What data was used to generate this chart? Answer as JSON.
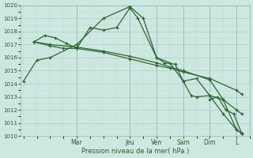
{
  "xlabel": "Pression niveau de la mer( hPa )",
  "bg_color": "#cce8e0",
  "grid_color": "#b0ccc8",
  "line_color": "#2d6632",
  "ylim": [
    1010,
    1020
  ],
  "yticks": [
    1010,
    1011,
    1012,
    1013,
    1014,
    1015,
    1016,
    1017,
    1018,
    1019,
    1020
  ],
  "day_labels": [
    "Mar",
    "Jeu",
    "Ven",
    "Sam",
    "Dim",
    "L"
  ],
  "day_positions": [
    2.0,
    4.0,
    5.0,
    6.0,
    7.0,
    8.0
  ],
  "xlim": [
    -0.1,
    8.5
  ],
  "series": [
    {
      "x": [
        0.0,
        0.5,
        1.0,
        2.0,
        3.0,
        4.0,
        4.5,
        5.0,
        5.5,
        6.0,
        6.3,
        6.5,
        7.0,
        7.5,
        8.0,
        8.2
      ],
      "y": [
        1014.2,
        1015.8,
        1016.0,
        1017.0,
        1019.0,
        1019.9,
        1019.0,
        1016.0,
        1015.6,
        1014.2,
        1013.1,
        1013.0,
        1013.1,
        1011.7,
        1010.5,
        1010.2
      ]
    },
    {
      "x": [
        0.4,
        0.8,
        1.2,
        1.6,
        2.0,
        2.5,
        3.0,
        3.5,
        4.0,
        4.3,
        5.0,
        5.3,
        5.7,
        6.0,
        6.5,
        7.0,
        7.5,
        8.0,
        8.2
      ],
      "y": [
        1017.2,
        1017.7,
        1017.5,
        1017.1,
        1016.7,
        1018.3,
        1018.1,
        1018.3,
        1019.8,
        1019.0,
        1016.0,
        1015.6,
        1015.5,
        1014.2,
        1014.4,
        1013.1,
        1012.8,
        1010.5,
        1010.2
      ]
    },
    {
      "x": [
        0.4,
        1.0,
        1.5,
        2.0,
        3.0,
        4.0,
        5.0,
        5.5,
        6.0,
        7.0,
        8.0,
        8.2
      ],
      "y": [
        1017.2,
        1016.9,
        1016.7,
        1016.7,
        1016.4,
        1015.9,
        1015.4,
        1015.2,
        1014.9,
        1014.4,
        1013.5,
        1013.2
      ]
    },
    {
      "x": [
        0.4,
        1.0,
        2.0,
        3.0,
        4.0,
        5.0,
        6.0,
        7.0,
        7.5,
        8.0,
        8.2
      ],
      "y": [
        1017.2,
        1017.0,
        1016.8,
        1016.5,
        1016.1,
        1015.6,
        1015.0,
        1014.3,
        1012.8,
        1012.0,
        1011.7
      ]
    },
    {
      "x": [
        7.0,
        7.3,
        7.6,
        7.9,
        8.2
      ],
      "y": [
        1012.8,
        1013.0,
        1012.0,
        1011.7,
        1010.2
      ]
    }
  ]
}
